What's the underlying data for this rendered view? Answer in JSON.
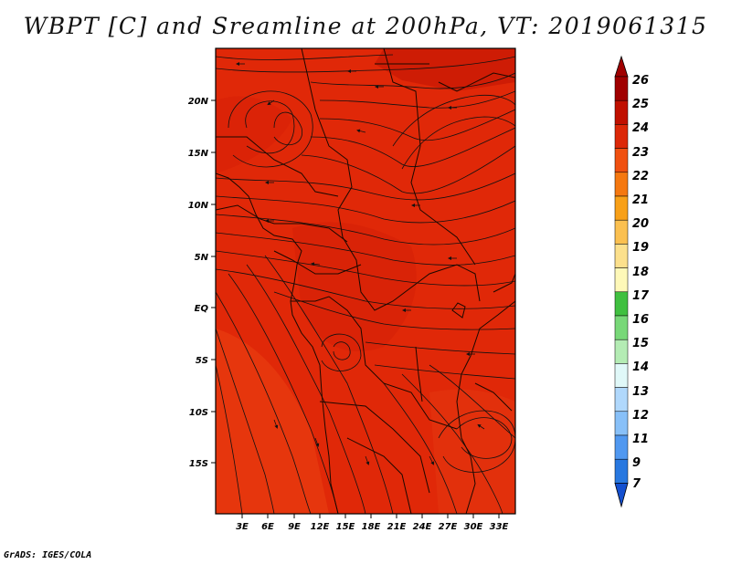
{
  "title": "WBPT [C] and Sreamline at 200hPa, VT: 2019061315",
  "credit": "GrADS: IGES/COLA",
  "map": {
    "variable": "WBPT [C]",
    "overlay": "Streamline",
    "level": "200hPa",
    "valid_time": "2019061315",
    "lon_labels": [
      "3E",
      "6E",
      "9E",
      "12E",
      "15E",
      "18E",
      "21E",
      "24E",
      "27E",
      "30E",
      "33E"
    ],
    "lat_labels": [
      "20N",
      "15N",
      "10N",
      "5N",
      "EQ",
      "5S",
      "10S",
      "15S"
    ],
    "dominant_fill": "#e02808",
    "shade_colors": [
      "#d81e06",
      "#e64010",
      "#b81402"
    ]
  },
  "colorbar": {
    "levels": [
      "26",
      "25",
      "24",
      "23",
      "22",
      "21",
      "20",
      "19",
      "18",
      "17",
      "16",
      "15",
      "14",
      "13",
      "12",
      "11",
      "9",
      "7"
    ],
    "colors": [
      "#a00000",
      "#c01000",
      "#dc2808",
      "#f05010",
      "#f57810",
      "#f8a018",
      "#fbc050",
      "#fce08c",
      "#fef8b8",
      "#40c040",
      "#78d878",
      "#b4ecb4",
      "#e0f8f8",
      "#b0d8fc",
      "#88c0f8",
      "#5098f0",
      "#2878e0",
      "#1450d0"
    ]
  }
}
